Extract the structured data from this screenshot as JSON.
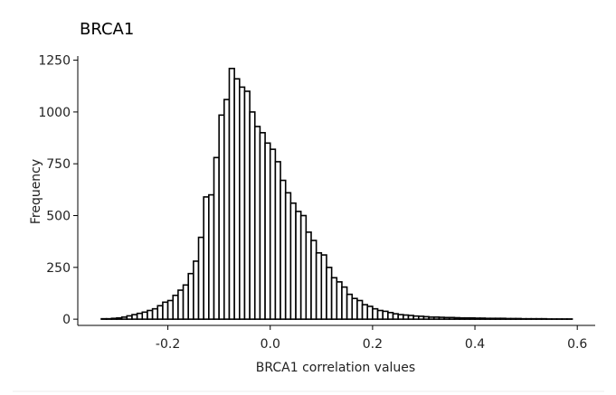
{
  "chart_data": {
    "type": "bar",
    "title": "BRCA1",
    "xlabel": "BRCA1 correlation values",
    "ylabel": "Frequency",
    "xlim": [
      -0.376,
      0.635
    ],
    "ylim": [
      -30,
      1270
    ],
    "x_ticks": [
      -0.2,
      0.0,
      0.2,
      0.4,
      0.6
    ],
    "x_tick_labels": [
      "-0.2",
      "0.0",
      "0.2",
      "0.4",
      "0.6"
    ],
    "y_ticks": [
      0,
      250,
      500,
      750,
      1000,
      1250
    ],
    "y_tick_labels": [
      "0",
      "250",
      "500",
      "750",
      "1000",
      "1250"
    ],
    "bin_width": 0.01,
    "bin_starts": [
      -0.33,
      -0.32,
      -0.31,
      -0.3,
      -0.29,
      -0.28,
      -0.27,
      -0.26,
      -0.25,
      -0.24,
      -0.23,
      -0.22,
      -0.21,
      -0.2,
      -0.19,
      -0.18,
      -0.17,
      -0.16,
      -0.15,
      -0.14,
      -0.13,
      -0.12,
      -0.11,
      -0.1,
      -0.09,
      -0.08,
      -0.07,
      -0.06,
      -0.05,
      -0.04,
      -0.03,
      -0.02,
      -0.01,
      0.0,
      0.01,
      0.02,
      0.03,
      0.04,
      0.05,
      0.06,
      0.07,
      0.08,
      0.09,
      0.1,
      0.11,
      0.12,
      0.13,
      0.14,
      0.15,
      0.16,
      0.17,
      0.18,
      0.19,
      0.2,
      0.21,
      0.22,
      0.23,
      0.24,
      0.25,
      0.26,
      0.27,
      0.28,
      0.29,
      0.3,
      0.31,
      0.32,
      0.33,
      0.34,
      0.35,
      0.36,
      0.37,
      0.38,
      0.39,
      0.4,
      0.41,
      0.42,
      0.43,
      0.44,
      0.45,
      0.46,
      0.47,
      0.48,
      0.49,
      0.5,
      0.51,
      0.52,
      0.53,
      0.54,
      0.55,
      0.56,
      0.57,
      0.58
    ],
    "values": [
      2,
      2,
      4,
      6,
      10,
      16,
      22,
      28,
      34,
      42,
      50,
      65,
      82,
      90,
      115,
      140,
      165,
      220,
      280,
      395,
      590,
      600,
      780,
      985,
      1060,
      1210,
      1160,
      1120,
      1100,
      1000,
      930,
      900,
      850,
      820,
      760,
      670,
      610,
      560,
      520,
      500,
      420,
      380,
      320,
      310,
      250,
      200,
      180,
      155,
      120,
      100,
      90,
      70,
      62,
      50,
      42,
      38,
      32,
      26,
      22,
      20,
      18,
      15,
      14,
      12,
      10,
      10,
      9,
      8,
      8,
      7,
      6,
      6,
      6,
      5,
      5,
      4,
      4,
      4,
      4,
      3,
      3,
      3,
      2,
      2,
      2,
      2,
      2,
      1,
      1,
      1,
      1,
      1
    ],
    "grid": false
  }
}
